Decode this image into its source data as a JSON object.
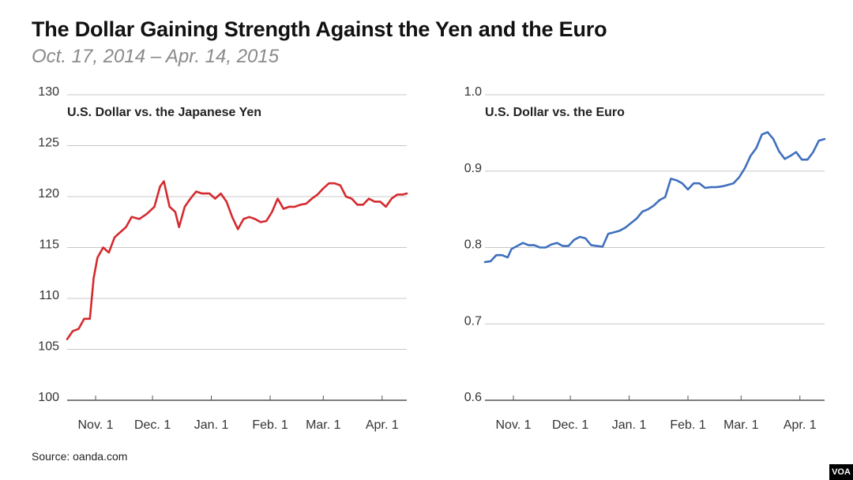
{
  "header": {
    "title": "The Dollar Gaining Strength Against the Yen and the Euro",
    "subtitle": "Oct. 17, 2014 – Apr. 14, 2015"
  },
  "footer": {
    "source": "Source: oanda.com",
    "logo": "VOA"
  },
  "chart_data": [
    {
      "type": "line",
      "title": "U.S. Dollar vs. the Japanese Yen",
      "xlabel": "",
      "ylabel": "",
      "ylim": [
        100,
        130
      ],
      "yticks": [
        100,
        105,
        110,
        115,
        120,
        125,
        130
      ],
      "ytick_labels": [
        "100",
        "105",
        "110",
        "115",
        "120",
        "125",
        "130"
      ],
      "xlim": [
        "2014-10-17",
        "2015-04-14"
      ],
      "xticks": [
        "2014-11-01",
        "2014-12-01",
        "2015-01-01",
        "2015-02-01",
        "2015-03-01",
        "2015-04-01"
      ],
      "xtick_labels": [
        "Nov. 1",
        "Dec. 1",
        "Jan. 1",
        "Feb. 1",
        "Mar. 1",
        "Apr. 1"
      ],
      "grid": true,
      "color": "#d42a2e",
      "series": [
        {
          "x": [
            "2014-10-17",
            "2014-10-20",
            "2014-10-23",
            "2014-10-26",
            "2014-10-29",
            "2014-10-31",
            "2014-11-02",
            "2014-11-05",
            "2014-11-08",
            "2014-11-11",
            "2014-11-14",
            "2014-11-17",
            "2014-11-20",
            "2014-11-24",
            "2014-11-28",
            "2014-12-02",
            "2014-12-05",
            "2014-12-07",
            "2014-12-10",
            "2014-12-13",
            "2014-12-15",
            "2014-12-18",
            "2014-12-21",
            "2014-12-24",
            "2014-12-27",
            "2014-12-31",
            "2015-01-03",
            "2015-01-06",
            "2015-01-09",
            "2015-01-12",
            "2015-01-15",
            "2015-01-18",
            "2015-01-21",
            "2015-01-24",
            "2015-01-27",
            "2015-01-30",
            "2015-02-02",
            "2015-02-05",
            "2015-02-08",
            "2015-02-11",
            "2015-02-14",
            "2015-02-17",
            "2015-02-20",
            "2015-02-23",
            "2015-02-26",
            "2015-03-01",
            "2015-03-04",
            "2015-03-07",
            "2015-03-10",
            "2015-03-13",
            "2015-03-16",
            "2015-03-19",
            "2015-03-22",
            "2015-03-25",
            "2015-03-28",
            "2015-03-31",
            "2015-04-03",
            "2015-04-06",
            "2015-04-09",
            "2015-04-12",
            "2015-04-14"
          ],
          "values": [
            106.0,
            106.8,
            107.0,
            108.0,
            108.0,
            112.0,
            114.0,
            115.0,
            114.5,
            116.0,
            116.5,
            117.0,
            118.0,
            117.8,
            118.3,
            119.0,
            121.0,
            121.5,
            119.0,
            118.5,
            117.0,
            119.0,
            119.8,
            120.5,
            120.3,
            120.3,
            119.8,
            120.3,
            119.5,
            118.0,
            116.8,
            117.8,
            118.0,
            117.8,
            117.5,
            117.6,
            118.5,
            119.8,
            118.8,
            119.0,
            119.0,
            119.2,
            119.3,
            119.8,
            120.2,
            120.8,
            121.3,
            121.3,
            121.1,
            120.0,
            119.8,
            119.2,
            119.2,
            119.8,
            119.5,
            119.5,
            119.0,
            119.8,
            120.2,
            120.2,
            120.3
          ]
        }
      ]
    },
    {
      "type": "line",
      "title": "U.S. Dollar vs. the Euro",
      "xlabel": "",
      "ylabel": "",
      "ylim": [
        0.6,
        1.0
      ],
      "yticks": [
        0.6,
        0.7,
        0.8,
        0.9,
        1.0
      ],
      "ytick_labels": [
        "0.6",
        "0.7",
        "0.8",
        "0.9",
        "1.0"
      ],
      "xlim": [
        "2014-10-17",
        "2015-04-14"
      ],
      "xticks": [
        "2014-11-01",
        "2014-12-01",
        "2015-01-01",
        "2015-02-01",
        "2015-03-01",
        "2015-04-01"
      ],
      "xtick_labels": [
        "Nov. 1",
        "Dec. 1",
        "Jan. 1",
        "Feb. 1",
        "Mar. 1",
        "Apr. 1"
      ],
      "grid": true,
      "color": "#3f6fbe",
      "series": [
        {
          "x": [
            "2014-10-17",
            "2014-10-20",
            "2014-10-23",
            "2014-10-26",
            "2014-10-29",
            "2014-10-31",
            "2014-11-03",
            "2014-11-06",
            "2014-11-09",
            "2014-11-12",
            "2014-11-15",
            "2014-11-18",
            "2014-11-21",
            "2014-11-24",
            "2014-11-27",
            "2014-11-30",
            "2014-12-03",
            "2014-12-06",
            "2014-12-09",
            "2014-12-12",
            "2014-12-15",
            "2014-12-18",
            "2014-12-21",
            "2014-12-24",
            "2014-12-27",
            "2014-12-30",
            "2015-01-02",
            "2015-01-05",
            "2015-01-08",
            "2015-01-11",
            "2015-01-14",
            "2015-01-17",
            "2015-01-20",
            "2015-01-23",
            "2015-01-26",
            "2015-01-29",
            "2015-02-01",
            "2015-02-04",
            "2015-02-07",
            "2015-02-10",
            "2015-02-13",
            "2015-02-16",
            "2015-02-19",
            "2015-02-22",
            "2015-02-25",
            "2015-02-28",
            "2015-03-03",
            "2015-03-06",
            "2015-03-09",
            "2015-03-12",
            "2015-03-15",
            "2015-03-18",
            "2015-03-21",
            "2015-03-24",
            "2015-03-27",
            "2015-03-30",
            "2015-04-02",
            "2015-04-05",
            "2015-04-08",
            "2015-04-11",
            "2015-04-14"
          ],
          "values": [
            0.781,
            0.782,
            0.79,
            0.79,
            0.787,
            0.798,
            0.802,
            0.806,
            0.803,
            0.803,
            0.8,
            0.8,
            0.804,
            0.806,
            0.802,
            0.802,
            0.81,
            0.814,
            0.812,
            0.803,
            0.802,
            0.801,
            0.818,
            0.82,
            0.822,
            0.826,
            0.832,
            0.838,
            0.847,
            0.85,
            0.855,
            0.862,
            0.866,
            0.89,
            0.888,
            0.884,
            0.876,
            0.884,
            0.884,
            0.878,
            0.879,
            0.879,
            0.88,
            0.882,
            0.884,
            0.892,
            0.904,
            0.92,
            0.93,
            0.948,
            0.951,
            0.942,
            0.926,
            0.916,
            0.92,
            0.925,
            0.915,
            0.915,
            0.925,
            0.94,
            0.942
          ]
        }
      ]
    }
  ]
}
